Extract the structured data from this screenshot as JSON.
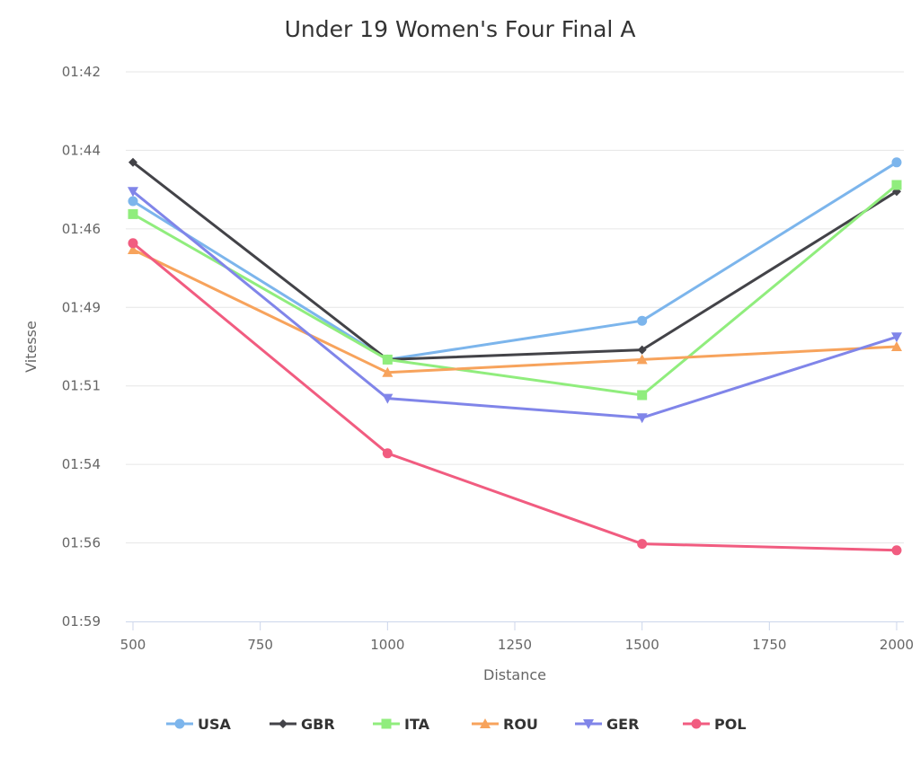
{
  "chart_data": {
    "type": "line",
    "title": "Under 19 Women's Four Final A",
    "xlabel": "Distance",
    "ylabel": "Vitesse",
    "x": [
      500,
      1000,
      1500,
      2000
    ],
    "xlim": [
      500,
      2000
    ],
    "xticks": [
      500,
      750,
      1000,
      1250,
      1500,
      1750,
      2000
    ],
    "y_unit": "seconds (mm:ss)",
    "ylim": [
      102,
      119
    ],
    "y_reversed": true,
    "yticks": [
      "01:42",
      "01:44",
      "01:46",
      "01:49",
      "01:51",
      "01:54",
      "01:56",
      "01:59"
    ],
    "grid": true,
    "legend_position": "bottom",
    "series": [
      {
        "name": "USA",
        "color": "#7cb5ec",
        "marker": "circle",
        "values": [
          106.0,
          110.9,
          109.7,
          104.8
        ]
      },
      {
        "name": "GBR",
        "color": "#434348",
        "marker": "diamond",
        "values": [
          104.8,
          110.9,
          110.6,
          105.7
        ]
      },
      {
        "name": "ITA",
        "color": "#90ed7d",
        "marker": "square",
        "values": [
          106.4,
          110.9,
          112.0,
          105.5
        ]
      },
      {
        "name": "ROU",
        "color": "#f7a35c",
        "marker": "triangle",
        "values": [
          107.5,
          111.3,
          110.9,
          110.5
        ]
      },
      {
        "name": "GER",
        "color": "#8085e9",
        "marker": "triangle-down",
        "values": [
          105.7,
          112.1,
          112.7,
          110.2
        ]
      },
      {
        "name": "POL",
        "color": "#f15c80",
        "marker": "circle",
        "values": [
          107.3,
          113.8,
          116.6,
          116.8
        ]
      }
    ]
  }
}
